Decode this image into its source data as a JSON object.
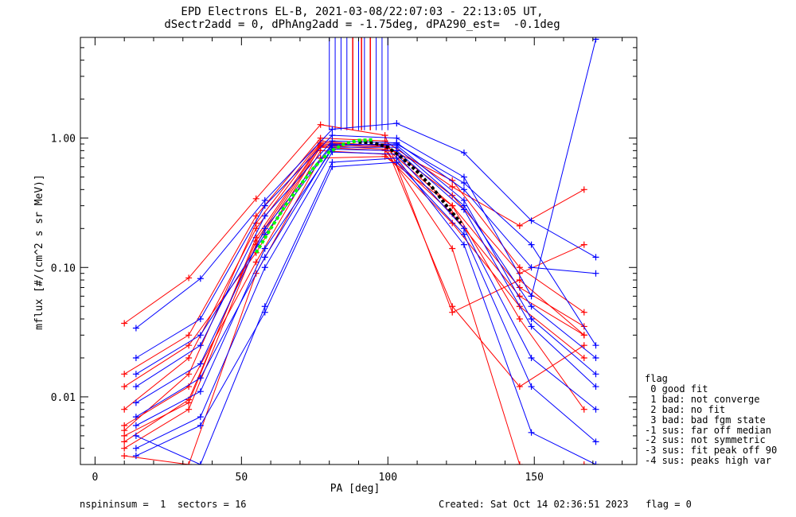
{
  "title_line1": "EPD Electrons EL-B, 2021-03-08/22:07:03 - 22:13:05 UT,",
  "title_line2": "dSectr2add = 0, dPhAng2add = -1.75deg, dPA290_est=  -0.1deg",
  "chart_data": {
    "type": "line",
    "xlabel": "PA [deg]",
    "ylabel": "mflux [#/(cm^2 s sr MeV)]",
    "xlim": [
      -5,
      185
    ],
    "ylim": [
      0.003,
      6.0
    ],
    "yscale": "log",
    "x_ticks": [
      0,
      50,
      100,
      150
    ],
    "y_ticks": [
      {
        "value": 0.01,
        "label": "0.01"
      },
      {
        "value": 0.1,
        "label": "0.10"
      },
      {
        "value": 1.0,
        "label": "1.00"
      }
    ],
    "pa_bins": [
      10,
      14,
      32,
      36,
      55,
      58,
      77,
      81,
      99,
      103,
      122,
      126,
      145,
      149,
      167,
      171
    ],
    "series": [
      {
        "color": "#ff0000",
        "x": [
          10,
          32,
          55,
          77,
          99,
          122,
          145,
          167
        ],
        "y": [
          0.005,
          0.009,
          0.17,
          0.9,
          0.85,
          0.3,
          0.07,
          0.035
        ]
      },
      {
        "color": "#ff0000",
        "x": [
          10,
          32,
          55,
          77,
          99,
          122,
          145,
          167
        ],
        "y": [
          0.004,
          0.008,
          0.15,
          0.85,
          0.8,
          0.26,
          0.06,
          0.03
        ]
      },
      {
        "color": "#ff0000",
        "x": [
          10,
          32,
          55,
          77,
          99,
          122,
          145,
          167
        ],
        "y": [
          0.037,
          0.083,
          0.34,
          1.27,
          1.05,
          0.045,
          0.08,
          0.03
        ]
      },
      {
        "color": "#ff0000",
        "x": [
          10,
          32,
          55,
          77,
          99,
          122,
          145,
          167
        ],
        "y": [
          0.015,
          0.03,
          0.25,
          1.0,
          0.95,
          0.42,
          0.21,
          0.4
        ]
      },
      {
        "color": "#ff0000",
        "x": [
          10,
          32,
          55,
          77,
          99,
          122,
          145,
          167
        ],
        "y": [
          0.006,
          0.012,
          0.11,
          0.8,
          0.75,
          0.22,
          0.05,
          0.02
        ]
      },
      {
        "color": "#ff0000",
        "x": [
          10,
          32,
          55,
          77,
          99,
          122,
          145,
          167
        ],
        "y": [
          0.0045,
          0.0095,
          0.16,
          0.88,
          0.82,
          0.14,
          0.003,
          0.003
        ]
      },
      {
        "color": "#ff0000",
        "x": [
          10,
          32,
          55,
          77,
          99,
          122,
          145,
          167
        ],
        "y": [
          0.008,
          0.02,
          0.2,
          0.92,
          0.88,
          0.36,
          0.09,
          0.15
        ]
      },
      {
        "color": "#ff0000",
        "x": [
          10,
          32,
          55,
          77,
          99,
          122,
          145,
          167
        ],
        "y": [
          0.0035,
          0.003,
          0.09,
          0.7,
          0.72,
          0.3,
          0.04,
          0.008
        ]
      },
      {
        "color": "#ff0000",
        "x": [
          10,
          32,
          55,
          77,
          99,
          122,
          145,
          167
        ],
        "y": [
          0.012,
          0.025,
          0.13,
          0.86,
          0.9,
          0.05,
          0.012,
          0.025
        ]
      },
      {
        "color": "#ff0000",
        "x": [
          10,
          32,
          55,
          77,
          99,
          122,
          145,
          167
        ],
        "y": [
          0.0055,
          0.015,
          0.22,
          0.95,
          0.86,
          0.47,
          0.1,
          0.045
        ]
      },
      {
        "color": "#0000ff",
        "x": [
          14,
          36,
          58,
          81,
          103,
          126,
          149,
          171
        ],
        "y": [
          0.006,
          0.011,
          0.14,
          0.82,
          0.8,
          0.28,
          0.035,
          0.012
        ]
      },
      {
        "color": "#0000ff",
        "x": [
          14,
          36,
          58,
          81,
          103,
          126,
          149,
          171
        ],
        "y": [
          0.004,
          0.007,
          0.1,
          0.78,
          0.75,
          0.2,
          0.02,
          0.008
        ]
      },
      {
        "color": "#0000ff",
        "x": [
          14,
          36,
          58,
          81,
          103,
          126,
          149,
          171
        ],
        "y": [
          0.034,
          0.082,
          0.33,
          1.17,
          1.3,
          0.77,
          0.23,
          0.12
        ]
      },
      {
        "color": "#0000ff",
        "x": [
          14,
          36,
          58,
          81,
          103,
          126,
          149,
          171
        ],
        "y": [
          0.02,
          0.04,
          0.3,
          1.05,
          1.0,
          0.5,
          0.06,
          5.8
        ]
      },
      {
        "color": "#0000ff",
        "x": [
          14,
          36,
          58,
          81,
          103,
          126,
          149,
          171
        ],
        "y": [
          0.009,
          0.018,
          0.2,
          0.9,
          0.88,
          0.33,
          0.04,
          0.015
        ]
      },
      {
        "color": "#0000ff",
        "x": [
          14,
          36,
          58,
          81,
          103,
          126,
          149,
          171
        ],
        "y": [
          0.005,
          0.003,
          0.05,
          0.65,
          0.7,
          0.15,
          0.0053,
          0.003
        ]
      },
      {
        "color": "#0000ff",
        "x": [
          14,
          36,
          58,
          81,
          103,
          126,
          149,
          171
        ],
        "y": [
          0.012,
          0.025,
          0.25,
          0.95,
          0.92,
          0.4,
          0.1,
          0.09
        ]
      },
      {
        "color": "#0000ff",
        "x": [
          14,
          36,
          58,
          81,
          103,
          126,
          149,
          171
        ],
        "y": [
          0.0035,
          0.006,
          0.045,
          0.6,
          0.65,
          0.18,
          0.012,
          0.0045
        ]
      },
      {
        "color": "#0000ff",
        "x": [
          14,
          36,
          58,
          81,
          103,
          126,
          149,
          171
        ],
        "y": [
          0.007,
          0.014,
          0.12,
          0.85,
          0.85,
          0.3,
          0.05,
          0.02
        ]
      },
      {
        "color": "#0000ff",
        "x": [
          14,
          36,
          58,
          81,
          103,
          126,
          149,
          171
        ],
        "y": [
          0.015,
          0.03,
          0.18,
          0.88,
          0.9,
          0.45,
          0.15,
          0.025
        ]
      }
    ],
    "fit_blue": {
      "color": "#0000ff",
      "x": [
        80,
        82,
        84,
        86,
        88,
        90,
        92,
        94,
        96,
        98,
        100
      ],
      "y": [
        6.0,
        6.0,
        6.0,
        6.0,
        6.0,
        6.0,
        6.0,
        6.0,
        6.0,
        6.0,
        6.0
      ]
    },
    "fit_green": {
      "color": "#00ff00",
      "x": [
        55,
        60,
        65,
        70,
        75,
        80,
        85,
        90,
        95
      ],
      "y": [
        0.13,
        0.2,
        0.3,
        0.43,
        0.6,
        0.78,
        0.9,
        0.96,
        0.97
      ]
    },
    "fit_black": {
      "color": "#000000",
      "x": [
        90,
        95,
        100,
        105,
        110,
        115,
        120,
        125
      ],
      "y": [
        0.93,
        0.92,
        0.85,
        0.7,
        0.55,
        0.42,
        0.3,
        0.22
      ]
    }
  },
  "legend": {
    "title": "flag",
    "items": [
      " 0 good fit",
      " 1 bad: not converge",
      " 2 bad: no fit",
      " 3 bad: bad fgm state",
      "-1 sus: far off median",
      "-2 sus: not symmetric",
      "-3 sus: fit peak off 90",
      "-4 sus: peaks high var"
    ]
  },
  "footer": {
    "left": "nspininsum =  1  sectors = 16",
    "right": "Created: Sat Oct 14 02:36:51 2023   flag = 0"
  }
}
